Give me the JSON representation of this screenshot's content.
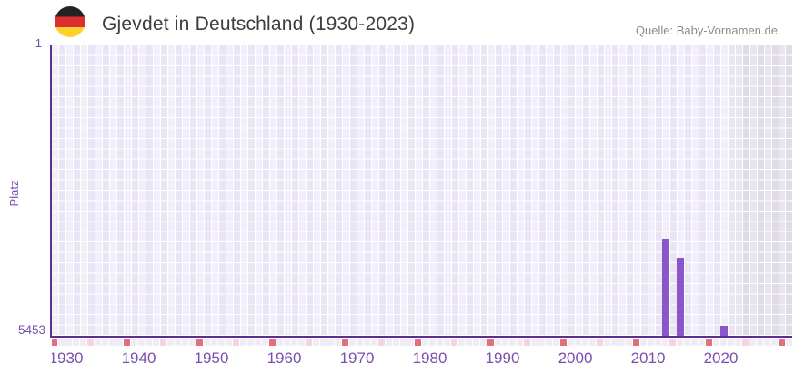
{
  "header": {
    "title": "Gjevdet in Deutschland (1930-2023)",
    "flag": "german-flag",
    "source": "Quelle: Baby-Vornamen.de"
  },
  "chart_data": {
    "type": "bar",
    "title": "Gjevdet in Deutschland (1930-2023)",
    "ylabel": "Platz",
    "y_axis": {
      "top_tick_label": "1",
      "bottom_tick_label": "5453",
      "min": 1,
      "max": 5453,
      "inverted": true
    },
    "x_axis": {
      "data_start": 1930,
      "data_end": 2023,
      "major_tick_step": 10,
      "minor_tick_step": 5,
      "tick_labels": [
        "1930",
        "1940",
        "1950",
        "1960",
        "1970",
        "1980",
        "1990",
        "2000",
        "2010",
        "2020"
      ]
    },
    "bars": [
      {
        "year": 2014,
        "rank": 3634
      },
      {
        "year": 2016,
        "rank": 3992
      },
      {
        "year": 2022,
        "rank": 5266
      }
    ],
    "no_data_region": {
      "from_year": 2024
    },
    "legend": "none",
    "grid": "on",
    "colors": {
      "bar": "#8c55c8",
      "axis_line": "#5c2e91",
      "axis_text": "#7a4fae",
      "major_tick": "#e0707e",
      "minor_tick": "#f3d5de",
      "default_tick": "#efebf7",
      "grid_cell_light": "#f2eefa",
      "grid_cell_dark": "#eae5f4",
      "future_cell_light": "#e9e5f0",
      "future_cell_dark": "#dfdce8",
      "title_text": "#3d3d3d",
      "source_text": "#8c8c8c",
      "flag_black": "#232323",
      "flag_red": "#dd2f2f",
      "flag_gold": "#ffd12b"
    }
  }
}
